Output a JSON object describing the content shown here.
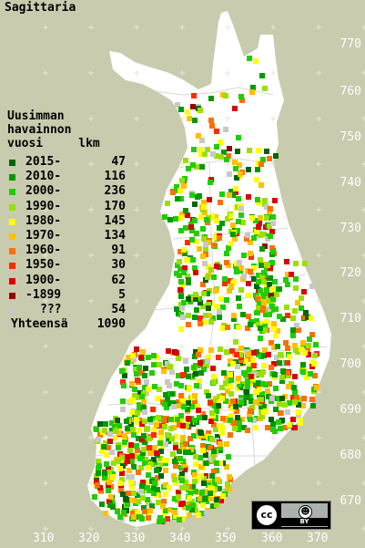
{
  "title": "Sagittaria",
  "colors": {
    "background": "#c9cbae",
    "land": "#ffffff",
    "borders": "#d8d8d8",
    "axis_text": "#ffffff"
  },
  "y_axis_ticks": [
    "770",
    "760",
    "750",
    "740",
    "730",
    "720",
    "710",
    "700",
    "690",
    "680",
    "670"
  ],
  "x_axis_ticks": [
    "310",
    "320",
    "330",
    "340",
    "350",
    "360",
    "370"
  ],
  "legend": {
    "heading": [
      "Uusimman",
      "havainnon",
      "vuosi     lkm"
    ],
    "entries": [
      {
        "year": "2015-",
        "count": "47",
        "color": "#006400"
      },
      {
        "year": "2010-",
        "count": "116",
        "color": "#009a00"
      },
      {
        "year": "2000-",
        "count": "236",
        "color": "#22cc00"
      },
      {
        "year": "1990-",
        "count": "170",
        "color": "#99e000"
      },
      {
        "year": "1980-",
        "count": "145",
        "color": "#ffff00"
      },
      {
        "year": "1970-",
        "count": "134",
        "color": "#ffc000"
      },
      {
        "year": "1960-",
        "count": "91",
        "color": "#ff7000"
      },
      {
        "year": "1950-",
        "count": "30",
        "color": "#ff2a00"
      },
      {
        "year": "1900-",
        "count": "62",
        "color": "#dd0000"
      },
      {
        "year": "-1899",
        "count": "5",
        "color": "#990000"
      },
      {
        "year": "???",
        "count": "54",
        "color": "#c8c8c8"
      }
    ],
    "total_label": "Yhteensä",
    "total_count": "1090"
  },
  "license": {
    "cc_label": "cc",
    "by_label": "BY",
    "by_icon": "person-icon"
  }
}
